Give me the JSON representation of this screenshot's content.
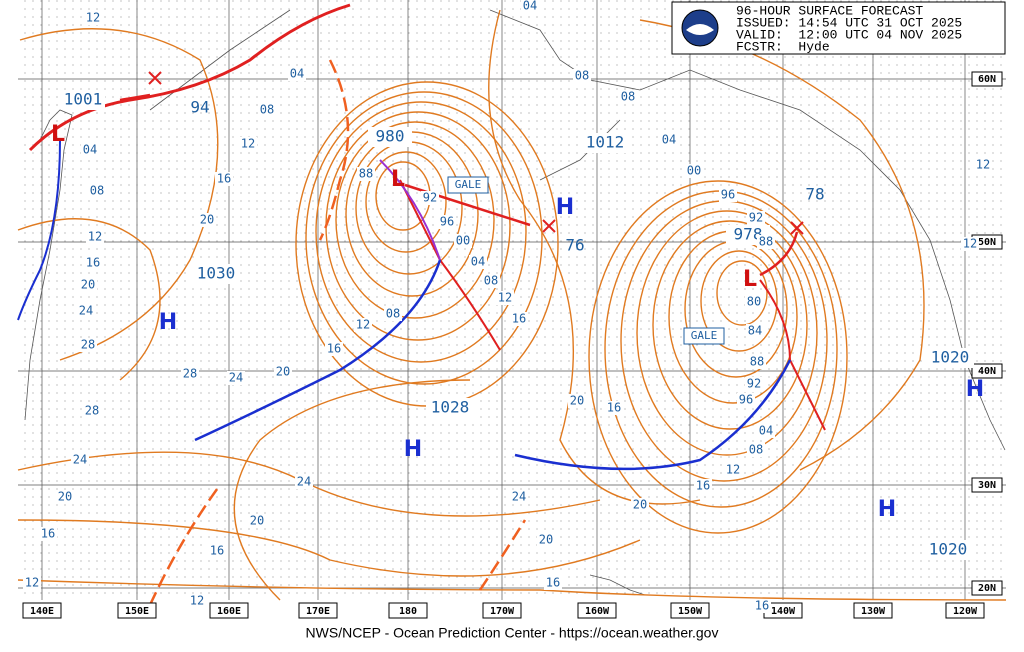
{
  "header": {
    "lines": [
      "96-HOUR SURFACE FORECAST",
      "ISSUED: 14:54 UTC 31 OCT 2025",
      "VALID:  12:00 UTC 04 NOV 2025",
      "FCSTR:  Hyde"
    ]
  },
  "lows": [
    {
      "letter": "L",
      "pressure": "1001"
    },
    {
      "letter": "L",
      "pressure": "980"
    },
    {
      "letter": "L",
      "pressure": "978"
    }
  ],
  "highs": [
    {
      "letter": "H",
      "pressure": "1030"
    },
    {
      "letter": "H",
      "pressure": "1012"
    },
    {
      "letter": "H",
      "pressure": "1028"
    },
    {
      "letter": "H",
      "pressure": "1020"
    },
    {
      "letter": "H",
      "pressure": "1020"
    }
  ],
  "center_labels": [
    "94",
    "76",
    "78"
  ],
  "gale_labels": [
    "GALE",
    "GALE"
  ],
  "isobar_labels": [
    "12",
    "04",
    "08",
    "12",
    "16",
    "20",
    "24",
    "28",
    "28",
    "24",
    "28",
    "20",
    "16",
    "12",
    "08",
    "04",
    "88",
    "92",
    "96",
    "00",
    "04",
    "08",
    "12",
    "16",
    "08",
    "12",
    "16",
    "20",
    "24",
    "20",
    "16",
    "12",
    "20",
    "16",
    "12",
    "24",
    "24",
    "20",
    "16",
    "20",
    "16",
    "20",
    "16",
    "12",
    "08",
    "04",
    "96",
    "92",
    "88",
    "84",
    "80",
    "88",
    "92",
    "96",
    "00",
    "04",
    "08",
    "04",
    "08",
    "12",
    "12",
    "16"
  ],
  "longitudes": [
    "140E",
    "150E",
    "160E",
    "170E",
    "180",
    "170W",
    "160W",
    "150W",
    "140W",
    "130W",
    "120W"
  ],
  "latitudes": [
    "60N",
    "50N",
    "40N",
    "30N",
    "20N"
  ],
  "footer": "NWS/NCEP - Ocean Prediction Center - https://ocean.weather.gov"
}
